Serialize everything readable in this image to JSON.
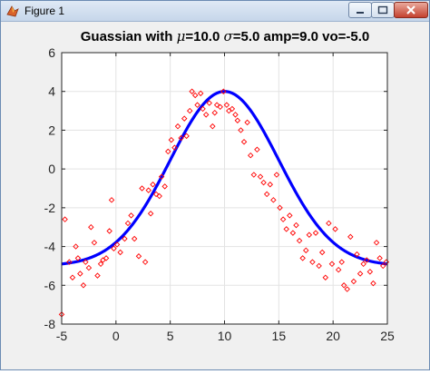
{
  "window": {
    "title": "Figure 1",
    "icons": {
      "app": "matlab-icon",
      "minimize": "minimize-icon",
      "maximize": "maximize-icon",
      "close": "close-icon"
    }
  },
  "chart_data": {
    "type": "line",
    "title_parts": [
      "Guassian with ",
      "μ",
      "=10.0 ",
      "σ",
      "=5.0 amp=9.0 vo=-5.0"
    ],
    "xlabel": "",
    "ylabel": "",
    "xlim": [
      -5,
      25
    ],
    "ylim": [
      -8,
      6
    ],
    "xticks": [
      -5,
      0,
      5,
      10,
      15,
      20,
      25
    ],
    "yticks": [
      -8,
      -6,
      -4,
      -2,
      0,
      2,
      4,
      6
    ],
    "grid": true,
    "series": [
      {
        "kind": "line",
        "color": "#0000ff",
        "function": {
          "mu": 10.0,
          "sigma": 5.0,
          "amp": 9.0,
          "vo": -5.0
        }
      },
      {
        "kind": "scatter",
        "marker": "diamond",
        "color": "#ff0000",
        "points": [
          [
            -5.0,
            -7.5
          ],
          [
            -4.7,
            -2.6
          ],
          [
            -4.3,
            -4.8
          ],
          [
            -4.0,
            -5.6
          ],
          [
            -3.7,
            -4.0
          ],
          [
            -3.5,
            -4.6
          ],
          [
            -3.3,
            -5.4
          ],
          [
            -3.0,
            -6.0
          ],
          [
            -2.8,
            -4.8
          ],
          [
            -2.5,
            -5.1
          ],
          [
            -2.3,
            -3.0
          ],
          [
            -2.0,
            -3.8
          ],
          [
            -1.7,
            -5.5
          ],
          [
            -1.4,
            -4.9
          ],
          [
            -1.2,
            -4.7
          ],
          [
            -0.9,
            -4.6
          ],
          [
            -0.6,
            -3.2
          ],
          [
            -0.4,
            -1.6
          ],
          [
            -0.2,
            -4.1
          ],
          [
            0.1,
            -3.9
          ],
          [
            0.4,
            -4.3
          ],
          [
            0.8,
            -3.6
          ],
          [
            1.1,
            -2.8
          ],
          [
            1.4,
            -2.4
          ],
          [
            1.7,
            -3.6
          ],
          [
            2.1,
            -4.5
          ],
          [
            2.4,
            -1.0
          ],
          [
            2.7,
            -4.8
          ],
          [
            3.0,
            -1.1
          ],
          [
            3.2,
            -2.3
          ],
          [
            3.4,
            -0.8
          ],
          [
            3.7,
            -1.3
          ],
          [
            4.0,
            -1.4
          ],
          [
            4.2,
            -0.4
          ],
          [
            4.5,
            -0.9
          ],
          [
            4.8,
            0.9
          ],
          [
            5.1,
            1.5
          ],
          [
            5.4,
            1.1
          ],
          [
            5.7,
            2.2
          ],
          [
            6.0,
            1.6
          ],
          [
            6.3,
            2.6
          ],
          [
            6.5,
            1.7
          ],
          [
            6.8,
            3.0
          ],
          [
            7.0,
            4.0
          ],
          [
            7.3,
            3.8
          ],
          [
            7.5,
            3.3
          ],
          [
            7.8,
            3.9
          ],
          [
            8.0,
            3.1
          ],
          [
            8.3,
            2.8
          ],
          [
            8.6,
            3.4
          ],
          [
            8.9,
            2.2
          ],
          [
            9.1,
            2.9
          ],
          [
            9.3,
            3.3
          ],
          [
            9.6,
            3.2
          ],
          [
            9.9,
            4.0
          ],
          [
            10.2,
            3.3
          ],
          [
            10.4,
            3.0
          ],
          [
            10.7,
            3.1
          ],
          [
            11.0,
            2.8
          ],
          [
            11.2,
            2.5
          ],
          [
            11.5,
            2.0
          ],
          [
            11.8,
            1.4
          ],
          [
            12.1,
            2.4
          ],
          [
            12.4,
            0.7
          ],
          [
            12.7,
            -0.3
          ],
          [
            13.0,
            1.0
          ],
          [
            13.3,
            -0.4
          ],
          [
            13.6,
            -0.7
          ],
          [
            13.9,
            -1.3
          ],
          [
            14.2,
            -0.8
          ],
          [
            14.5,
            -1.6
          ],
          [
            14.8,
            -0.3
          ],
          [
            15.1,
            -2.0
          ],
          [
            15.4,
            -2.6
          ],
          [
            15.7,
            -3.1
          ],
          [
            16.0,
            -2.4
          ],
          [
            16.3,
            -3.3
          ],
          [
            16.6,
            -2.9
          ],
          [
            16.9,
            -3.7
          ],
          [
            17.2,
            -4.6
          ],
          [
            17.5,
            -4.2
          ],
          [
            17.8,
            -3.4
          ],
          [
            18.1,
            -4.8
          ],
          [
            18.4,
            -3.3
          ],
          [
            18.7,
            -5.0
          ],
          [
            19.0,
            -4.3
          ],
          [
            19.3,
            -5.6
          ],
          [
            19.6,
            -2.8
          ],
          [
            19.9,
            -4.9
          ],
          [
            20.2,
            -3.1
          ],
          [
            20.5,
            -5.2
          ],
          [
            20.8,
            -4.8
          ],
          [
            21.0,
            -6.0
          ],
          [
            21.3,
            -6.2
          ],
          [
            21.6,
            -3.5
          ],
          [
            21.9,
            -5.8
          ],
          [
            22.2,
            -4.4
          ],
          [
            22.5,
            -5.4
          ],
          [
            22.8,
            -4.9
          ],
          [
            23.1,
            -4.7
          ],
          [
            23.4,
            -5.3
          ],
          [
            23.7,
            -5.9
          ],
          [
            24.0,
            -3.8
          ],
          [
            24.3,
            -4.6
          ],
          [
            24.6,
            -5.0
          ],
          [
            24.9,
            -4.8
          ]
        ]
      }
    ]
  }
}
